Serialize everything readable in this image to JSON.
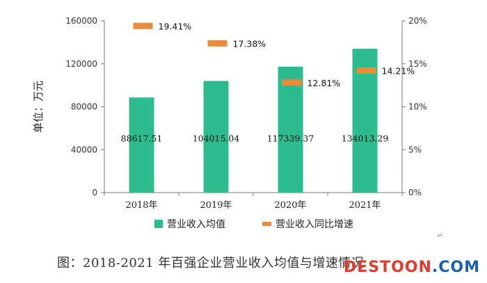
{
  "chart_data": {
    "type": "bar",
    "categories": [
      "2018年",
      "2019年",
      "2020年",
      "2021年"
    ],
    "series": [
      {
        "name": "营业收入均值",
        "type": "bar",
        "axis": "left",
        "color": "#2ebc8f",
        "values": [
          88617.51,
          104015.04,
          117339.37,
          134013.29
        ],
        "labels": [
          "88617.51",
          "104015.04",
          "117339.37",
          "134013.29"
        ]
      },
      {
        "name": "营业收入同比增速",
        "type": "marker",
        "axis": "right",
        "color": "#ec8a3c",
        "values": [
          19.41,
          17.38,
          12.81,
          14.21
        ],
        "labels": [
          "19.41%",
          "17.38%",
          "12.81%",
          "14.21%"
        ]
      }
    ],
    "ylabel": "单位：万元",
    "ylim": [
      0,
      160000
    ],
    "yticks": [
      "0",
      "40000",
      "80000",
      "120000",
      "160000"
    ],
    "y2lim": [
      0,
      20
    ],
    "y2ticks": [
      "0%",
      "5%",
      "10%",
      "15%",
      "20%"
    ],
    "grid": false,
    "legend_position": "bottom"
  },
  "caption": "图：2018-2021 年百强企业营业收入均值与增速情况",
  "watermark": {
    "main": "DESTOON",
    "suffix": ".COM"
  }
}
